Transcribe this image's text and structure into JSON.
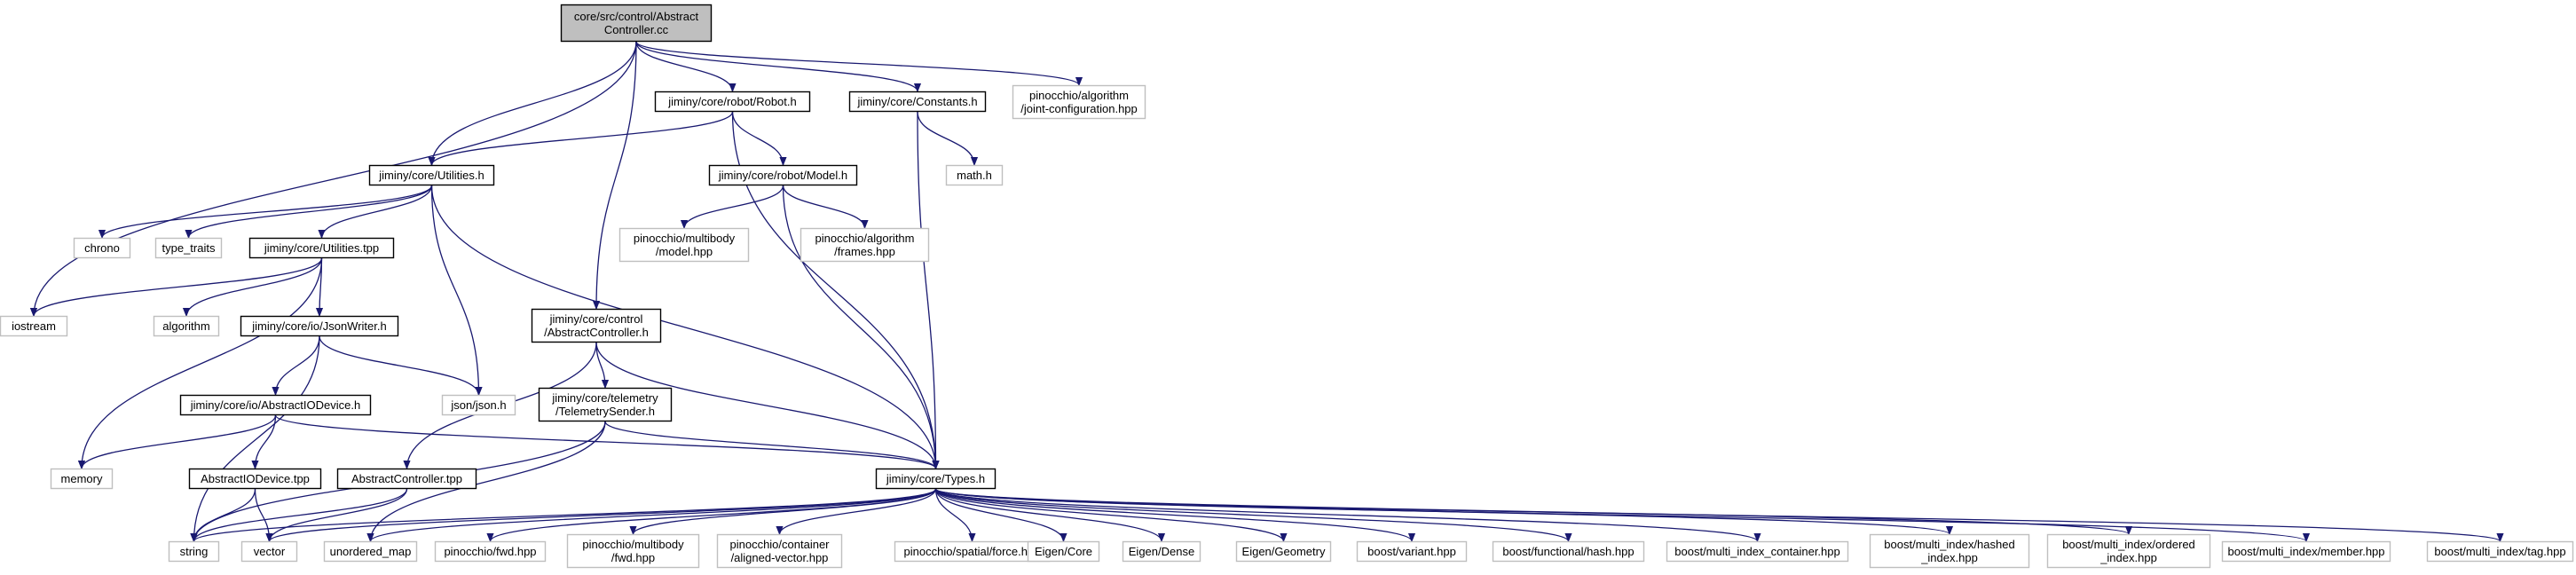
{
  "diagram": {
    "nodes": [
      {
        "id": "root",
        "lines": [
          "core/src/control/Abstract",
          "Controller.cc"
        ],
        "kind": "root"
      },
      {
        "id": "robot",
        "lines": [
          "jiminy/core/robot/Robot.h"
        ],
        "kind": "internal"
      },
      {
        "id": "constants",
        "lines": [
          "jiminy/core/Constants.h"
        ],
        "kind": "internal"
      },
      {
        "id": "jointcfg",
        "lines": [
          "pinocchio/algorithm",
          "/joint-configuration.hpp"
        ],
        "kind": "external"
      },
      {
        "id": "utilities",
        "lines": [
          "jiminy/core/Utilities.h"
        ],
        "kind": "internal"
      },
      {
        "id": "model",
        "lines": [
          "jiminy/core/robot/Model.h"
        ],
        "kind": "internal"
      },
      {
        "id": "math",
        "lines": [
          "math.h"
        ],
        "kind": "external"
      },
      {
        "id": "chrono",
        "lines": [
          "chrono"
        ],
        "kind": "external"
      },
      {
        "id": "typetraits",
        "lines": [
          "type_traits"
        ],
        "kind": "external"
      },
      {
        "id": "utilitiestpp",
        "lines": [
          "jiminy/core/Utilities.tpp"
        ],
        "kind": "internal"
      },
      {
        "id": "pinmodel",
        "lines": [
          "pinocchio/multibody",
          "/model.hpp"
        ],
        "kind": "external"
      },
      {
        "id": "pinframes",
        "lines": [
          "pinocchio/algorithm",
          "/frames.hpp"
        ],
        "kind": "external"
      },
      {
        "id": "iostream",
        "lines": [
          "iostream"
        ],
        "kind": "external"
      },
      {
        "id": "algorithm",
        "lines": [
          "algorithm"
        ],
        "kind": "external"
      },
      {
        "id": "jsonwriter",
        "lines": [
          "jiminy/core/io/JsonWriter.h"
        ],
        "kind": "internal"
      },
      {
        "id": "abstractcontrollerh",
        "lines": [
          "jiminy/core/control",
          "/AbstractController.h"
        ],
        "kind": "internal"
      },
      {
        "id": "jsonjson",
        "lines": [
          "json/json.h"
        ],
        "kind": "external"
      },
      {
        "id": "abstractiodeviceh",
        "lines": [
          "jiminy/core/io/AbstractIODevice.h"
        ],
        "kind": "internal"
      },
      {
        "id": "telemetrysender",
        "lines": [
          "jiminy/core/telemetry",
          "/TelemetrySender.h"
        ],
        "kind": "internal"
      },
      {
        "id": "memory",
        "lines": [
          "memory"
        ],
        "kind": "external"
      },
      {
        "id": "abstractiodevicetpp",
        "lines": [
          "AbstractIODevice.tpp"
        ],
        "kind": "internal"
      },
      {
        "id": "abstractcontrollertpp",
        "lines": [
          "AbstractController.tpp"
        ],
        "kind": "internal"
      },
      {
        "id": "types",
        "lines": [
          "jiminy/core/Types.h"
        ],
        "kind": "internal"
      },
      {
        "id": "string",
        "lines": [
          "string"
        ],
        "kind": "external"
      },
      {
        "id": "vector",
        "lines": [
          "vector"
        ],
        "kind": "external"
      },
      {
        "id": "unorderedmap",
        "lines": [
          "unordered_map"
        ],
        "kind": "external"
      },
      {
        "id": "pinfwd",
        "lines": [
          "pinocchio/fwd.hpp"
        ],
        "kind": "external"
      },
      {
        "id": "pinmultibodyfwd",
        "lines": [
          "pinocchio/multibody",
          "/fwd.hpp"
        ],
        "kind": "external"
      },
      {
        "id": "pinalignedvector",
        "lines": [
          "pinocchio/container",
          "/aligned-vector.hpp"
        ],
        "kind": "external"
      },
      {
        "id": "pinforce",
        "lines": [
          "pinocchio/spatial/force.hpp"
        ],
        "kind": "external"
      },
      {
        "id": "eigencore",
        "lines": [
          "Eigen/Core"
        ],
        "kind": "external"
      },
      {
        "id": "eigendense",
        "lines": [
          "Eigen/Dense"
        ],
        "kind": "external"
      },
      {
        "id": "eigengeometry",
        "lines": [
          "Eigen/Geometry"
        ],
        "kind": "external"
      },
      {
        "id": "boostvariant",
        "lines": [
          "boost/variant.hpp"
        ],
        "kind": "external"
      },
      {
        "id": "boosthash",
        "lines": [
          "boost/functional/hash.hpp"
        ],
        "kind": "external"
      },
      {
        "id": "boostmic",
        "lines": [
          "boost/multi_index_container.hpp"
        ],
        "kind": "external"
      },
      {
        "id": "boosthashedindex",
        "lines": [
          "boost/multi_index/hashed",
          "_index.hpp"
        ],
        "kind": "external"
      },
      {
        "id": "boostorderedindex",
        "lines": [
          "boost/multi_index/ordered",
          "_index.hpp"
        ],
        "kind": "external"
      },
      {
        "id": "boostmember",
        "lines": [
          "boost/multi_index/member.hpp"
        ],
        "kind": "external"
      },
      {
        "id": "boosttag",
        "lines": [
          "boost/multi_index/tag.hpp"
        ],
        "kind": "external"
      }
    ],
    "edges": [
      [
        "root",
        "robot"
      ],
      [
        "root",
        "constants"
      ],
      [
        "root",
        "jointcfg"
      ],
      [
        "root",
        "utilities"
      ],
      [
        "root",
        "iostream"
      ],
      [
        "root",
        "abstractcontrollerh"
      ],
      [
        "robot",
        "utilities"
      ],
      [
        "robot",
        "model"
      ],
      [
        "robot",
        "types"
      ],
      [
        "constants",
        "math"
      ],
      [
        "constants",
        "types"
      ],
      [
        "utilities",
        "chrono"
      ],
      [
        "utilities",
        "typetraits"
      ],
      [
        "utilities",
        "utilitiestpp"
      ],
      [
        "utilities",
        "jsonjson"
      ],
      [
        "utilities",
        "types"
      ],
      [
        "model",
        "pinmodel"
      ],
      [
        "model",
        "pinframes"
      ],
      [
        "model",
        "types"
      ],
      [
        "utilitiestpp",
        "iostream"
      ],
      [
        "utilitiestpp",
        "algorithm"
      ],
      [
        "utilitiestpp",
        "jsonwriter"
      ],
      [
        "utilitiestpp",
        "memory"
      ],
      [
        "jsonwriter",
        "jsonjson"
      ],
      [
        "jsonwriter",
        "abstractiodeviceh"
      ],
      [
        "jsonwriter",
        "string"
      ],
      [
        "abstractcontrollerh",
        "telemetrysender"
      ],
      [
        "abstractcontrollerh",
        "abstractcontrollertpp"
      ],
      [
        "abstractcontrollerh",
        "types"
      ],
      [
        "abstractiodeviceh",
        "memory"
      ],
      [
        "abstractiodeviceh",
        "abstractiodevicetpp"
      ],
      [
        "abstractiodeviceh",
        "types"
      ],
      [
        "telemetrysender",
        "types"
      ],
      [
        "telemetrysender",
        "string"
      ],
      [
        "telemetrysender",
        "unorderedmap"
      ],
      [
        "abstractiodevicetpp",
        "string"
      ],
      [
        "abstractiodevicetpp",
        "vector"
      ],
      [
        "abstractcontrollertpp",
        "string"
      ],
      [
        "abstractcontrollertpp",
        "vector"
      ],
      [
        "types",
        "string"
      ],
      [
        "types",
        "vector"
      ],
      [
        "types",
        "unorderedmap"
      ],
      [
        "types",
        "pinfwd"
      ],
      [
        "types",
        "pinmultibodyfwd"
      ],
      [
        "types",
        "pinalignedvector"
      ],
      [
        "types",
        "pinforce"
      ],
      [
        "types",
        "eigencore"
      ],
      [
        "types",
        "eigendense"
      ],
      [
        "types",
        "eigengeometry"
      ],
      [
        "types",
        "boostvariant"
      ],
      [
        "types",
        "boosthash"
      ],
      [
        "types",
        "boostmic"
      ],
      [
        "types",
        "boosthashedindex"
      ],
      [
        "types",
        "boostorderedindex"
      ],
      [
        "types",
        "boostmember"
      ],
      [
        "types",
        "boosttag"
      ]
    ],
    "colors": {
      "edge": "#191970",
      "root_fill": "#bfbfbf",
      "internal_border": "#000000",
      "external_border": "#bfbfbf",
      "text": "#000000"
    }
  }
}
